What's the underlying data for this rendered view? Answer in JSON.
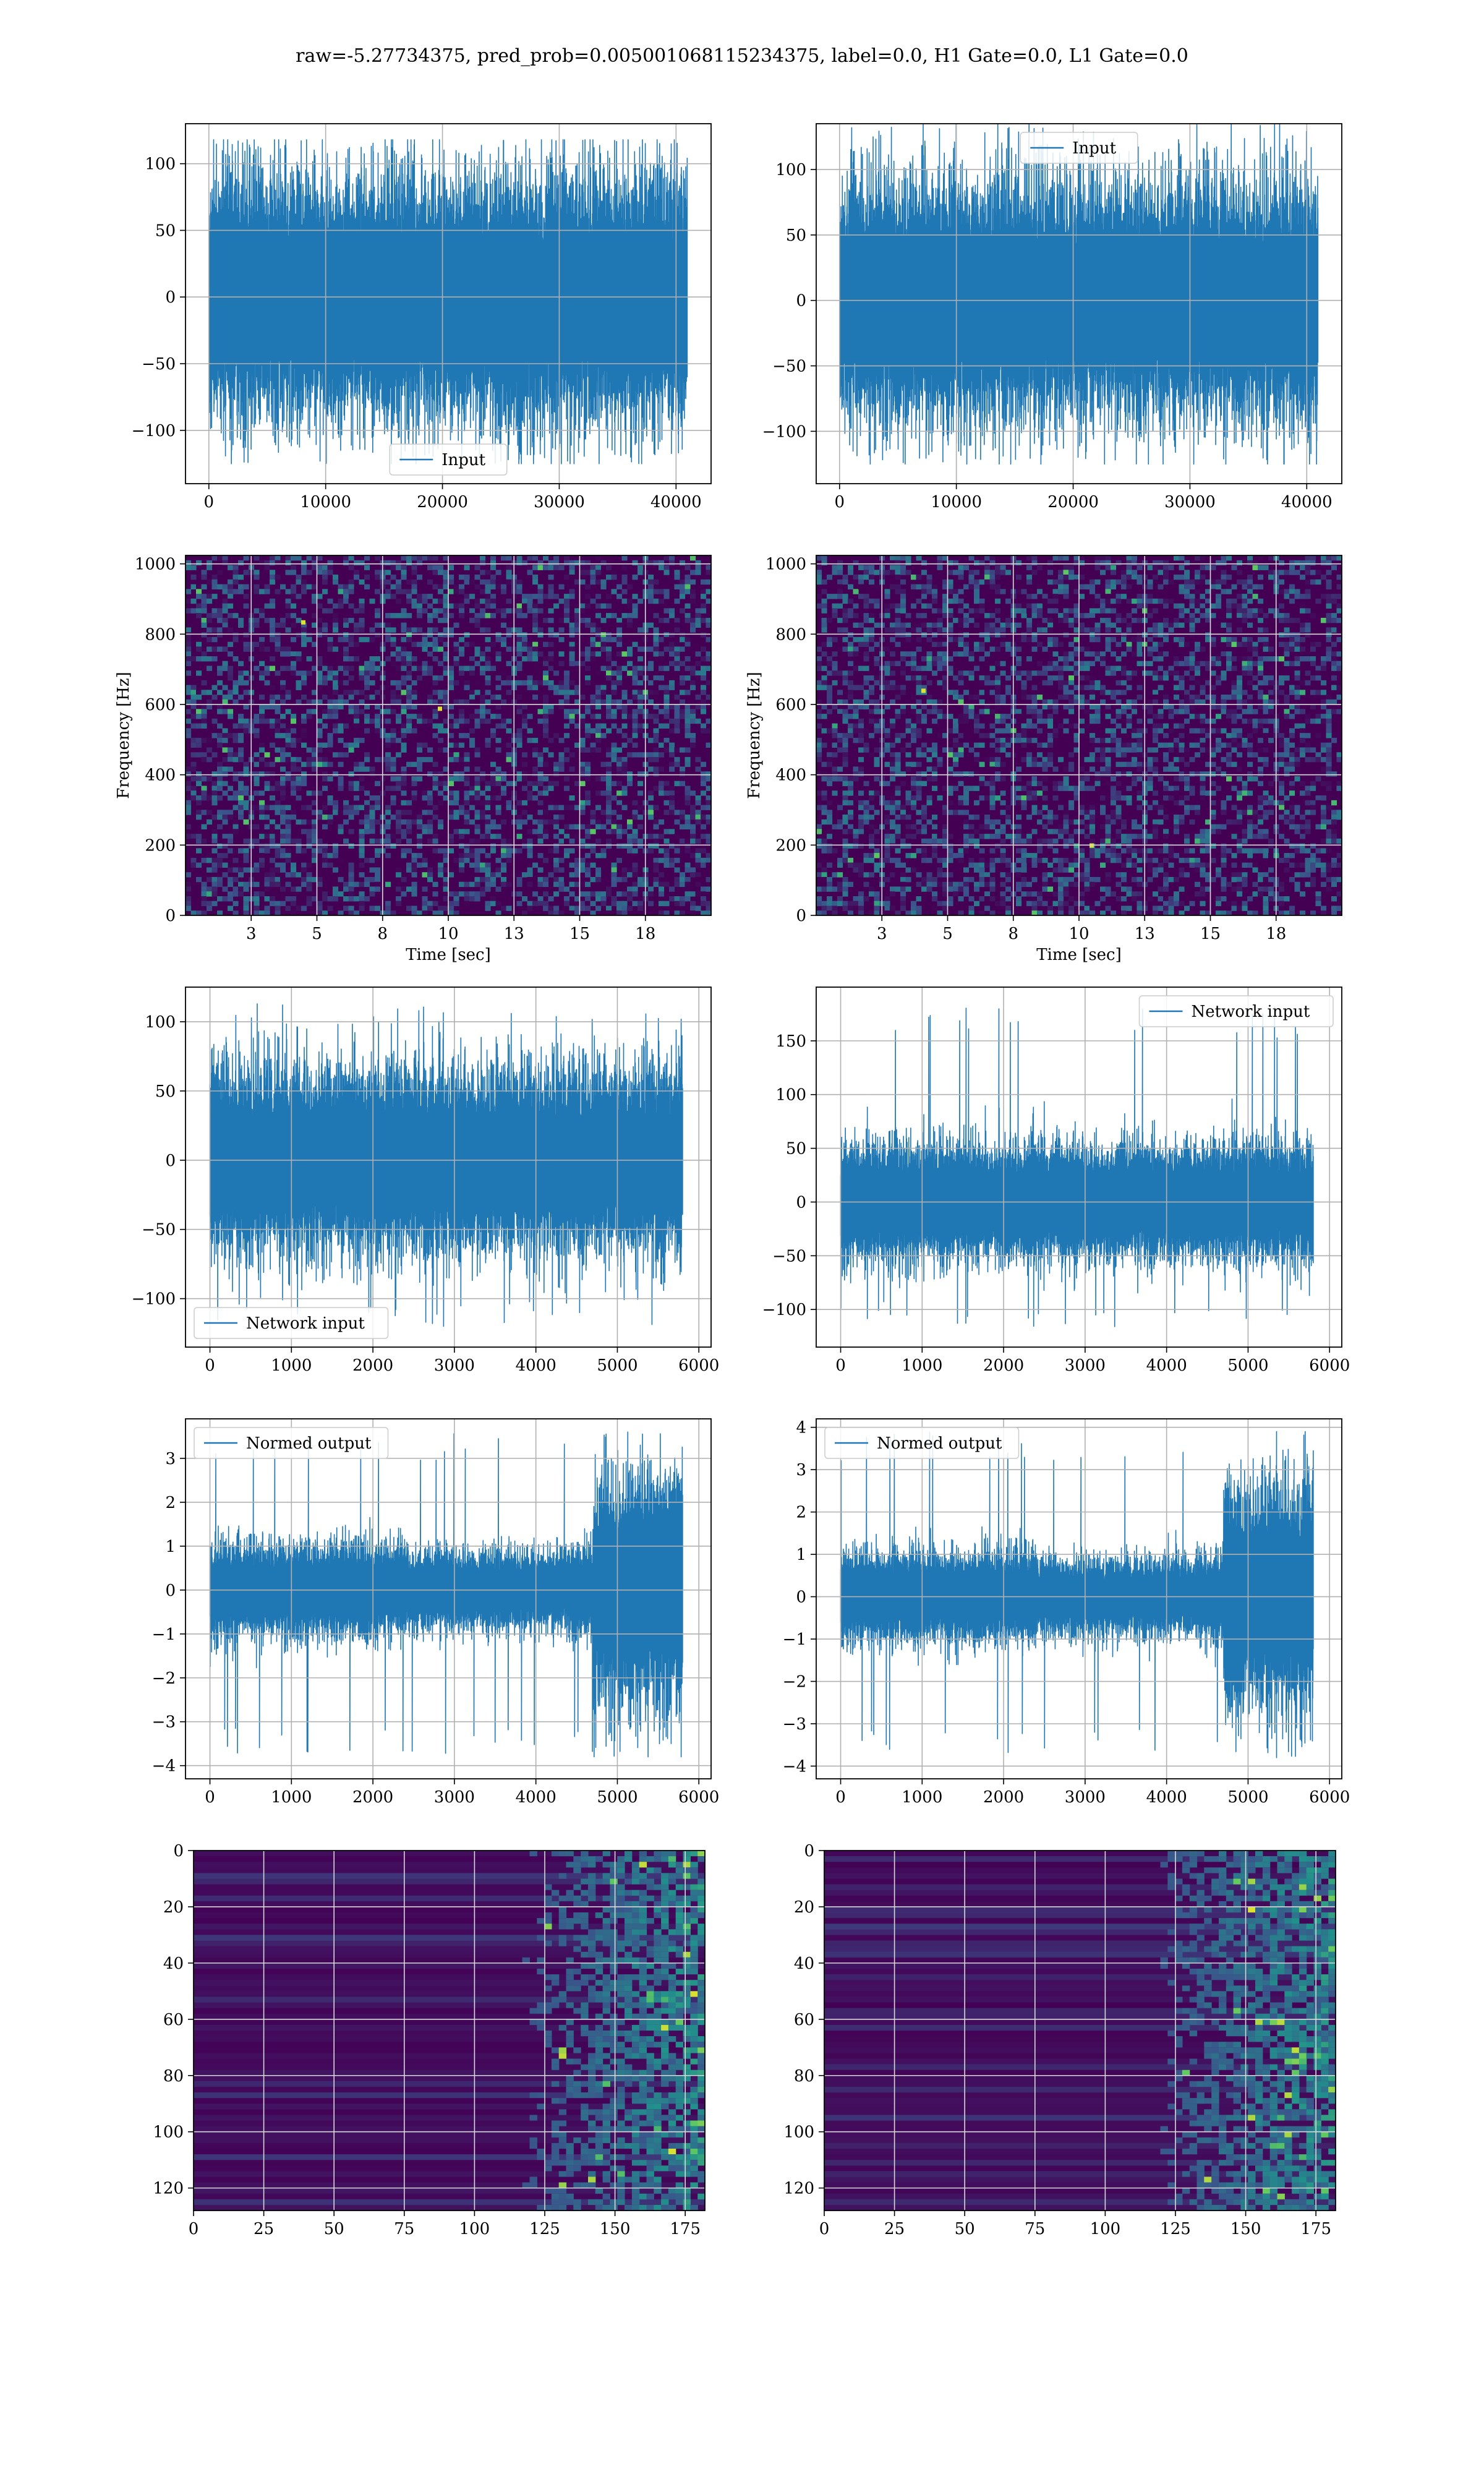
{
  "figure": {
    "suptitle": "raw=-5.27734375, pred_prob=0.005001068115234375, label=0.0, H1 Gate=0.0, L1 Gate=0.0"
  },
  "colors": {
    "line": "#1f77b4",
    "grid": "#b0b0b0",
    "viridis_low": "#440154",
    "viridis_mid": "#21918c",
    "viridis_high": "#fde725"
  },
  "chart_data": [
    {
      "id": "input-h1",
      "type": "line",
      "xlim": [
        -2000,
        43000
      ],
      "ylim": [
        -140,
        130
      ],
      "xticks": [
        0,
        10000,
        20000,
        30000,
        40000
      ],
      "yticks": [
        -100,
        -50,
        0,
        50,
        100
      ],
      "legend": {
        "label": "Input",
        "position": "lower-center"
      },
      "series": [
        {
          "name": "Input",
          "x_range": [
            0,
            40959
          ],
          "n_points": 40960,
          "envelope": [
            -125,
            118
          ],
          "core": [
            -75,
            75
          ]
        }
      ],
      "grid": true
    },
    {
      "id": "input-l1",
      "type": "line",
      "xlim": [
        -2000,
        43000
      ],
      "ylim": [
        -140,
        135
      ],
      "xticks": [
        0,
        10000,
        20000,
        30000,
        40000
      ],
      "yticks": [
        -100,
        -50,
        0,
        50,
        100
      ],
      "legend": {
        "label": "Input",
        "position": "upper-center"
      },
      "series": [
        {
          "name": "Input",
          "x_range": [
            0,
            40959
          ],
          "n_points": 40960,
          "envelope": [
            -125,
            135
          ],
          "core": [
            -75,
            75
          ]
        }
      ],
      "grid": true
    },
    {
      "id": "spectrogram-h1",
      "type": "heatmap",
      "xlim": [
        0,
        20
      ],
      "ylim": [
        0,
        1024
      ],
      "xticks": [
        2.5,
        5.0,
        7.5,
        10.0,
        12.5,
        15.0,
        17.5
      ],
      "yticks": [
        0,
        200,
        400,
        600,
        800,
        1000
      ],
      "xlabel": "Time [sec]",
      "ylabel": "Frequency [Hz]",
      "colormap": "viridis",
      "grid": true
    },
    {
      "id": "spectrogram-l1",
      "type": "heatmap",
      "xlim": [
        0,
        20
      ],
      "ylim": [
        0,
        1024
      ],
      "xticks": [
        2.5,
        5.0,
        7.5,
        10.0,
        12.5,
        15.0,
        17.5
      ],
      "yticks": [
        0,
        200,
        400,
        600,
        800,
        1000
      ],
      "xlabel": "Time [sec]",
      "ylabel": "Frequency [Hz]",
      "colormap": "viridis",
      "grid": true
    },
    {
      "id": "network-input-h1",
      "type": "line",
      "xlim": [
        -300,
        6150
      ],
      "ylim": [
        -135,
        125
      ],
      "xticks": [
        0,
        1000,
        2000,
        3000,
        4000,
        5000,
        6000
      ],
      "yticks": [
        -100,
        -50,
        0,
        50,
        100
      ],
      "legend": {
        "label": "Network input",
        "position": "lower-left"
      },
      "series": [
        {
          "name": "Network input",
          "x_range": [
            0,
            5800
          ],
          "n_points": 5800,
          "envelope": [
            -122,
            113
          ],
          "core": [
            -55,
            55
          ]
        }
      ],
      "grid": true
    },
    {
      "id": "network-input-l1",
      "type": "line",
      "xlim": [
        -300,
        6150
      ],
      "ylim": [
        -135,
        200
      ],
      "xticks": [
        0,
        1000,
        2000,
        3000,
        4000,
        5000,
        6000
      ],
      "yticks": [
        -100,
        -50,
        0,
        50,
        100,
        150
      ],
      "legend": {
        "label": "Network input",
        "position": "upper-right"
      },
      "series": [
        {
          "name": "Network input",
          "x_range": [
            0,
            5800
          ],
          "n_points": 5800,
          "envelope": [
            -118,
            184
          ],
          "core": [
            -45,
            45
          ]
        }
      ],
      "grid": true
    },
    {
      "id": "normed-output-h1",
      "type": "line",
      "xlim": [
        -300,
        6150
      ],
      "ylim": [
        -4.3,
        3.9
      ],
      "xticks": [
        0,
        1000,
        2000,
        3000,
        4000,
        5000,
        6000
      ],
      "yticks": [
        -4,
        -3,
        -2,
        -1,
        0,
        1,
        2,
        3
      ],
      "legend": {
        "label": "Normed output",
        "position": "upper-left"
      },
      "series": [
        {
          "name": "Normed output",
          "x_range": [
            0,
            5800
          ],
          "n_points": 5800,
          "envelope": [
            -3.8,
            3.6
          ],
          "burst_start_x": 4700
        }
      ],
      "grid": true
    },
    {
      "id": "normed-output-l1",
      "type": "line",
      "xlim": [
        -300,
        6150
      ],
      "ylim": [
        -4.3,
        4.2
      ],
      "xticks": [
        0,
        1000,
        2000,
        3000,
        4000,
        5000,
        6000
      ],
      "yticks": [
        -4,
        -3,
        -2,
        -1,
        0,
        1,
        2,
        3,
        4
      ],
      "legend": {
        "label": "Normed output",
        "position": "upper-left"
      },
      "series": [
        {
          "name": "Normed output",
          "x_range": [
            0,
            5800
          ],
          "n_points": 5800,
          "envelope": [
            -3.8,
            3.9
          ],
          "burst_start_x": 4700
        }
      ],
      "grid": true
    },
    {
      "id": "feature-map-h1",
      "type": "heatmap",
      "xlim": [
        0,
        182
      ],
      "ylim": [
        128,
        0
      ],
      "xticks": [
        0,
        25,
        50,
        75,
        100,
        125,
        150,
        175
      ],
      "yticks": [
        0,
        20,
        40,
        60,
        80,
        100,
        120
      ],
      "colormap": "viridis",
      "grid": true,
      "shape": [
        128,
        182
      ]
    },
    {
      "id": "feature-map-l1",
      "type": "heatmap",
      "xlim": [
        0,
        182
      ],
      "ylim": [
        128,
        0
      ],
      "xticks": [
        0,
        25,
        50,
        75,
        100,
        125,
        150,
        175
      ],
      "yticks": [
        0,
        20,
        40,
        60,
        80,
        100,
        120
      ],
      "colormap": "viridis",
      "grid": true,
      "shape": [
        128,
        182
      ]
    }
  ]
}
